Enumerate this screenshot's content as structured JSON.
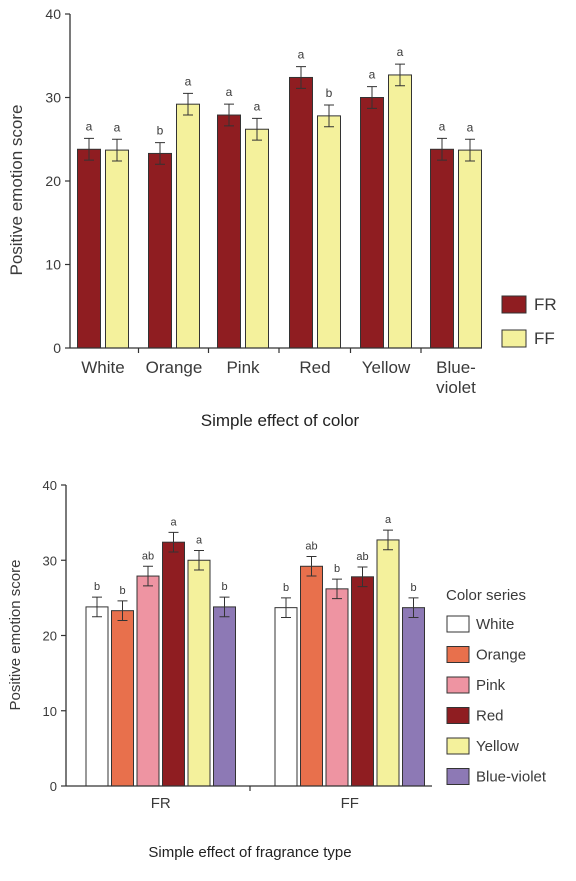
{
  "colors": {
    "FR": "#8f1d21",
    "FF": "#f4f19c",
    "White": "#ffffff",
    "Orange": "#e8704c",
    "Pink": "#ee94a2",
    "Red": "#8f1d21",
    "Yellow": "#f4f19c",
    "Blue-violet": "#8d79b5",
    "axis": "#333333",
    "bar_stroke": "#333333"
  },
  "chart_data": [
    {
      "type": "bar",
      "caption": "Simple effect of color",
      "ylabel": "Positive emotion score",
      "ylim": [
        0,
        40
      ],
      "yticks": [
        0,
        10,
        20,
        30,
        40
      ],
      "grid": false,
      "legend_position": "right",
      "categories": [
        {
          "label": "White",
          "label_lines": [
            "White"
          ]
        },
        {
          "label": "Orange",
          "label_lines": [
            "Orange"
          ]
        },
        {
          "label": "Pink",
          "label_lines": [
            "Pink"
          ]
        },
        {
          "label": "Red",
          "label_lines": [
            "Red"
          ]
        },
        {
          "label": "Yellow",
          "label_lines": [
            "Yellow"
          ]
        },
        {
          "label": "Blue-violet",
          "label_lines": [
            "Blue-",
            "violet"
          ]
        }
      ],
      "series": [
        {
          "name": "FR",
          "values": [
            23.8,
            23.3,
            27.9,
            32.4,
            30.0,
            23.8
          ],
          "errors": [
            1.3,
            1.3,
            1.3,
            1.3,
            1.3,
            1.3
          ],
          "letters": [
            "a",
            "b",
            "a",
            "a",
            "a",
            "a"
          ]
        },
        {
          "name": "FF",
          "values": [
            23.7,
            29.2,
            26.2,
            27.8,
            32.7,
            23.7
          ],
          "errors": [
            1.3,
            1.3,
            1.3,
            1.3,
            1.3,
            1.3
          ],
          "letters": [
            "a",
            "a",
            "a",
            "b",
            "a",
            "a"
          ]
        }
      ]
    },
    {
      "type": "bar",
      "caption": "Simple effect of fragrance type",
      "ylabel": "Positive emotion score",
      "ylim": [
        0,
        40
      ],
      "yticks": [
        0,
        10,
        20,
        30,
        40
      ],
      "grid": false,
      "legend_position": "right",
      "legend_title": "Color series",
      "categories": [
        {
          "label": "FR",
          "label_lines": [
            "FR"
          ]
        },
        {
          "label": "FF",
          "label_lines": [
            "FF"
          ]
        }
      ],
      "series": [
        {
          "name": "White",
          "values": [
            23.8,
            23.7
          ],
          "errors": [
            1.3,
            1.3
          ],
          "letters": [
            "b",
            "b"
          ]
        },
        {
          "name": "Orange",
          "values": [
            23.3,
            29.2
          ],
          "errors": [
            1.3,
            1.3
          ],
          "letters": [
            "b",
            "ab"
          ]
        },
        {
          "name": "Pink",
          "values": [
            27.9,
            26.2
          ],
          "errors": [
            1.3,
            1.3
          ],
          "letters": [
            "ab",
            "b"
          ]
        },
        {
          "name": "Red",
          "values": [
            32.4,
            27.8
          ],
          "errors": [
            1.3,
            1.3
          ],
          "letters": [
            "a",
            "ab"
          ]
        },
        {
          "name": "Yellow",
          "values": [
            30.0,
            32.7
          ],
          "errors": [
            1.3,
            1.3
          ],
          "letters": [
            "a",
            "a"
          ]
        },
        {
          "name": "Blue-violet",
          "values": [
            23.8,
            23.7
          ],
          "errors": [
            1.3,
            1.3
          ],
          "letters": [
            "b",
            "b"
          ]
        }
      ]
    }
  ]
}
